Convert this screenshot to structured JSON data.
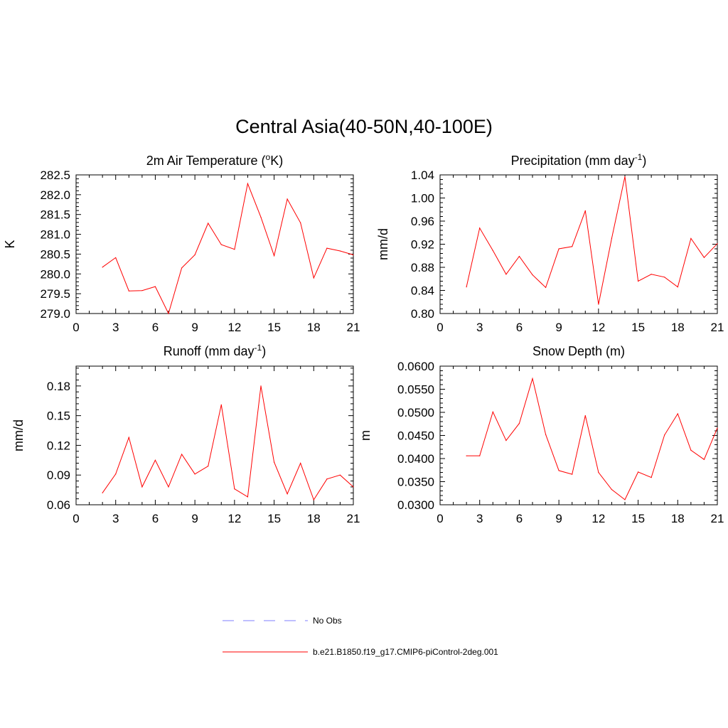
{
  "title": "Central Asia(40-50N,40-100E)",
  "colors": {
    "model": "#ff0000",
    "obs": "#9999ff",
    "axis": "#000000"
  },
  "legend": {
    "obs_label": "No Obs",
    "model_label": "b.e21.B1850.f19_g17.CMIP6-piControl-2deg.001"
  },
  "chart_data": [
    {
      "type": "line",
      "title": "2m Air Temperature (",
      "title_sup": "o",
      "title_tail": "K)",
      "ylabel": "K",
      "xlabel": "",
      "xlim": [
        0,
        21
      ],
      "ylim": [
        279.0,
        282.5
      ],
      "xticks": [
        "0",
        "3",
        "6",
        "9",
        "12",
        "15",
        "18",
        "21"
      ],
      "yticks": [
        "279.0",
        "279.5",
        "280.0",
        "280.5",
        "281.0",
        "281.5",
        "282.0",
        "282.5"
      ],
      "series": [
        {
          "x": [
            2,
            3,
            4,
            5,
            6,
            7,
            8,
            9,
            10,
            11,
            12,
            13,
            14,
            15,
            16,
            17,
            18,
            19,
            20,
            21
          ],
          "y": [
            280.17,
            280.41,
            279.57,
            279.58,
            279.68,
            279.0,
            280.15,
            280.48,
            281.28,
            280.74,
            280.62,
            282.28,
            281.43,
            280.46,
            281.89,
            281.29,
            279.9,
            280.65,
            280.58,
            280.48
          ]
        }
      ]
    },
    {
      "type": "line",
      "title": "Precipitation (mm day",
      "title_sup": "-1",
      "title_tail": ")",
      "ylabel": "mm/d",
      "xlabel": "",
      "xlim": [
        0,
        21
      ],
      "ylim": [
        0.8,
        1.04
      ],
      "xticks": [
        "0",
        "3",
        "6",
        "9",
        "12",
        "15",
        "18",
        "21"
      ],
      "yticks": [
        "0.80",
        "0.84",
        "0.88",
        "0.92",
        "0.96",
        "1.00",
        "1.04"
      ],
      "series": [
        {
          "x": [
            2,
            3,
            4,
            5,
            6,
            7,
            8,
            9,
            10,
            11,
            12,
            13,
            14,
            15,
            16,
            17,
            18,
            19,
            20,
            21
          ],
          "y": [
            0.846,
            0.948,
            0.909,
            0.868,
            0.899,
            0.867,
            0.845,
            0.912,
            0.916,
            0.978,
            0.816,
            0.93,
            1.037,
            0.856,
            0.868,
            0.863,
            0.846,
            0.93,
            0.897,
            0.921
          ]
        }
      ]
    },
    {
      "type": "line",
      "title": "Runoff (mm day",
      "title_sup": "-1",
      "title_tail": ")",
      "ylabel": "mm/d",
      "xlabel": "",
      "xlim": [
        0,
        21
      ],
      "ylim": [
        0.06,
        0.2
      ],
      "xticks": [
        "0",
        "3",
        "6",
        "9",
        "12",
        "15",
        "18",
        "21"
      ],
      "yticks": [
        "0.06",
        "0.09",
        "0.12",
        "0.15",
        "0.18"
      ],
      "series": [
        {
          "x": [
            2,
            3,
            4,
            5,
            6,
            7,
            8,
            9,
            10,
            11,
            12,
            13,
            14,
            15,
            16,
            17,
            18,
            19,
            20,
            21
          ],
          "y": [
            0.072,
            0.091,
            0.128,
            0.078,
            0.105,
            0.078,
            0.111,
            0.091,
            0.099,
            0.161,
            0.076,
            0.068,
            0.18,
            0.103,
            0.071,
            0.102,
            0.065,
            0.086,
            0.09,
            0.078
          ]
        }
      ]
    },
    {
      "type": "line",
      "title": "Snow Depth (m)",
      "title_sup": "",
      "title_tail": "",
      "ylabel": "m",
      "xlabel": "",
      "xlim": [
        0,
        21
      ],
      "ylim": [
        0.03,
        0.06
      ],
      "xticks": [
        "0",
        "3",
        "6",
        "9",
        "12",
        "15",
        "18",
        "21"
      ],
      "yticks": [
        "0.0300",
        "0.0350",
        "0.0400",
        "0.0450",
        "0.0500",
        "0.0550",
        "0.0600"
      ],
      "series": [
        {
          "x": [
            2,
            3,
            4,
            5,
            6,
            7,
            8,
            9,
            10,
            11,
            12,
            13,
            14,
            15,
            16,
            17,
            18,
            19,
            20,
            21
          ],
          "y": [
            0.0406,
            0.0406,
            0.0501,
            0.0439,
            0.0476,
            0.0573,
            0.0452,
            0.0374,
            0.0366,
            0.0493,
            0.037,
            0.0333,
            0.0311,
            0.0371,
            0.0359,
            0.0451,
            0.0497,
            0.0418,
            0.0398,
            0.0466
          ]
        }
      ]
    }
  ]
}
